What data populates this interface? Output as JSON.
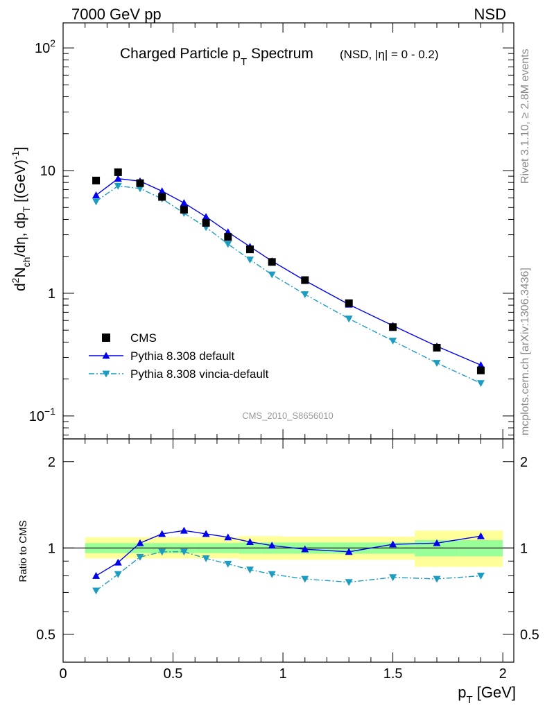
{
  "header": {
    "left": "7000 GeV pp",
    "right": "NSD"
  },
  "title": {
    "main": "Charged Particle p",
    "main_sub": "T",
    "main_after": " Spectrum",
    "qualifier": "(NSD, |η| =   0 - 0.2)"
  },
  "side_labels": {
    "rivet": "Rivet 3.1.10, ≥ 2.8M events",
    "mcplots": "mcplots.cern.ch [arXiv:1306.3436]"
  },
  "watermark": "CMS_2010_S8656010",
  "axes": {
    "y_main": {
      "parts": [
        "d",
        "2",
        "N",
        "ch",
        "/dη, dp",
        "T",
        " [(GeV)",
        "-1",
        "]"
      ],
      "range": [
        0.065,
        160
      ],
      "scale": "log",
      "tick_labels": [
        {
          "value": 0.1,
          "mantissa": "10",
          "exp": "−1"
        },
        {
          "value": 1,
          "mantissa": "1",
          "exp": ""
        },
        {
          "value": 10,
          "mantissa": "10",
          "exp": ""
        },
        {
          "value": 100,
          "mantissa": "10",
          "exp": "2"
        }
      ]
    },
    "y_ratio": {
      "label": "Ratio to CMS",
      "range": [
        0.4,
        2.4
      ],
      "scale": "log",
      "tick_labels": [
        {
          "value": 0.5,
          "text": "0.5"
        },
        {
          "value": 1,
          "text": "1"
        },
        {
          "value": 2,
          "text": "2"
        }
      ]
    },
    "x": {
      "label": "p",
      "label_sub": "T",
      "label_unit": " [GeV]",
      "range": [
        0,
        2.05
      ],
      "tick_labels": [
        {
          "value": 0,
          "text": "0"
        },
        {
          "value": 0.5,
          "text": "0.5"
        },
        {
          "value": 1,
          "text": "1"
        },
        {
          "value": 1.5,
          "text": "1.5"
        },
        {
          "value": 2,
          "text": "2"
        }
      ]
    }
  },
  "legend": [
    {
      "label": "CMS",
      "style": "square",
      "color": "#000000"
    },
    {
      "label": "Pythia 8.308 default",
      "style": "solid-triangle-up",
      "color": "#0000ee"
    },
    {
      "label": "Pythia 8.308 vincia-default",
      "style": "dashdot-triangle-down",
      "color": "#1b9cc0"
    }
  ],
  "colors": {
    "band_outer": "#ffff99",
    "band_inner": "#99ff99",
    "default": "#0000ee",
    "vincia": "#1b9cc0"
  },
  "chart_data": {
    "type": "line",
    "x": [
      0.15,
      0.25,
      0.35,
      0.45,
      0.55,
      0.65,
      0.75,
      0.85,
      0.95,
      1.1,
      1.3,
      1.5,
      1.7,
      1.9
    ],
    "bins": [
      [
        0.1,
        0.2
      ],
      [
        0.2,
        0.3
      ],
      [
        0.3,
        0.4
      ],
      [
        0.4,
        0.5
      ],
      [
        0.5,
        0.6
      ],
      [
        0.6,
        0.7
      ],
      [
        0.7,
        0.8
      ],
      [
        0.8,
        0.9
      ],
      [
        0.9,
        1.0
      ],
      [
        1.0,
        1.2
      ],
      [
        1.2,
        1.4
      ],
      [
        1.4,
        1.6
      ],
      [
        1.6,
        1.8
      ],
      [
        1.8,
        2.0
      ]
    ],
    "series": [
      {
        "name": "CMS",
        "values": [
          8.3,
          9.7,
          7.9,
          6.1,
          4.8,
          3.75,
          2.88,
          2.28,
          1.8,
          1.28,
          0.83,
          0.53,
          0.36,
          0.235
        ]
      },
      {
        "name": "Pythia 8.308 default",
        "values": [
          6.3,
          8.6,
          8.2,
          6.8,
          5.45,
          4.2,
          3.15,
          2.4,
          1.83,
          1.27,
          0.81,
          0.545,
          0.37,
          0.26
        ]
      },
      {
        "name": "Pythia 8.308 vincia-default",
        "values": [
          5.6,
          7.5,
          7.15,
          5.9,
          4.5,
          3.45,
          2.52,
          1.88,
          1.42,
          0.98,
          0.62,
          0.41,
          0.27,
          0.185
        ]
      }
    ],
    "ratio": {
      "series": [
        {
          "name": "Pythia 8.308 default",
          "values": [
            0.8,
            0.89,
            1.04,
            1.12,
            1.15,
            1.12,
            1.09,
            1.05,
            1.02,
            0.99,
            0.97,
            1.03,
            1.04,
            1.1
          ]
        },
        {
          "name": "Pythia 8.308 vincia-default",
          "values": [
            0.71,
            0.81,
            0.93,
            0.97,
            0.97,
            0.92,
            0.88,
            0.84,
            0.81,
            0.78,
            0.76,
            0.79,
            0.78,
            0.8
          ]
        }
      ],
      "band_inner": [
        [
          0.96,
          1.04
        ],
        [
          0.96,
          1.04
        ],
        [
          0.96,
          1.04
        ],
        [
          0.96,
          1.04
        ],
        [
          0.96,
          1.04
        ],
        [
          0.96,
          1.04
        ],
        [
          0.96,
          1.04
        ],
        [
          0.955,
          1.045
        ],
        [
          0.955,
          1.045
        ],
        [
          0.955,
          1.045
        ],
        [
          0.955,
          1.045
        ],
        [
          0.955,
          1.045
        ],
        [
          0.935,
          1.065
        ],
        [
          0.935,
          1.065
        ]
      ],
      "band_outer": [
        [
          0.92,
          1.09
        ],
        [
          0.92,
          1.09
        ],
        [
          0.92,
          1.09
        ],
        [
          0.92,
          1.09
        ],
        [
          0.92,
          1.09
        ],
        [
          0.92,
          1.09
        ],
        [
          0.92,
          1.09
        ],
        [
          0.91,
          1.1
        ],
        [
          0.91,
          1.1
        ],
        [
          0.91,
          1.095
        ],
        [
          0.91,
          1.095
        ],
        [
          0.91,
          1.095
        ],
        [
          0.86,
          1.15
        ],
        [
          0.86,
          1.15
        ]
      ]
    },
    "xlim": [
      0,
      2.05
    ],
    "ylim_main": [
      0.065,
      160
    ],
    "ylim_ratio": [
      0.4,
      2.4
    ],
    "yscale": "log",
    "legend_position": "lower-left"
  }
}
